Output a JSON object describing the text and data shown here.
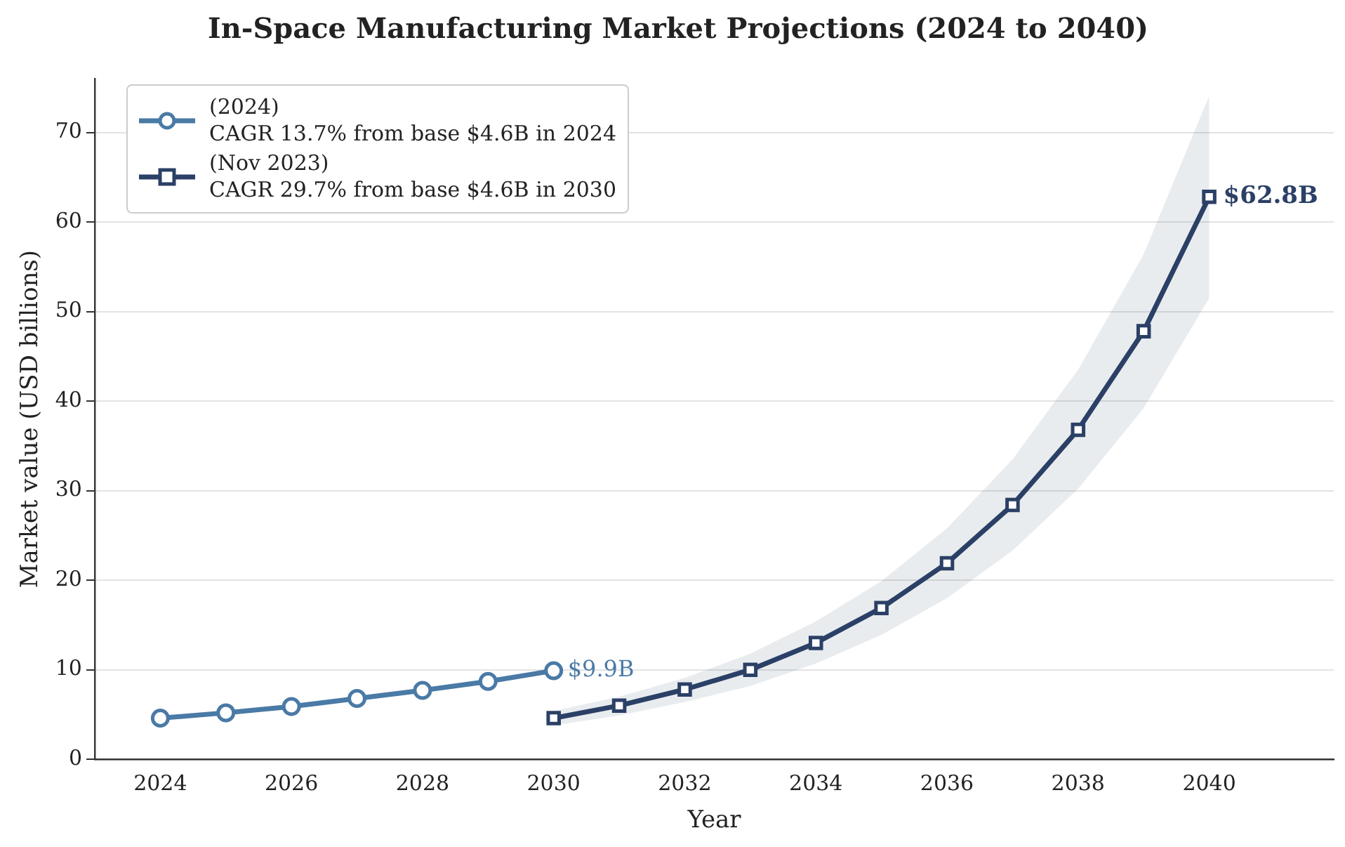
{
  "chart_data": {
    "type": "line",
    "title": "In-Space Manufacturing Market Projections (2024 to 2040)",
    "xlabel": "Year",
    "ylabel": "Market value (USD billions)",
    "xlim": [
      2023,
      2041.9
    ],
    "xticks": [
      2024,
      2026,
      2028,
      2030,
      2032,
      2034,
      2036,
      2038,
      2040
    ],
    "ylim": [
      0,
      76
    ],
    "yticks": [
      0,
      10,
      20,
      30,
      40,
      50,
      60,
      70
    ],
    "grid": "y",
    "legend": "top left",
    "line_style": "solid",
    "series": [
      {
        "name": "(2024)\nCAGR 13.7% from base $4.6B in 2024",
        "color": "#4a7aa6",
        "marker": "circle",
        "x": [
          2024,
          2025,
          2026,
          2027,
          2028,
          2029,
          2030
        ],
        "values": [
          4.6,
          5.2,
          5.9,
          6.8,
          7.7,
          8.7,
          9.9
        ]
      },
      {
        "name": "(Nov 2023)\nCAGR 29.7% from base $4.6B in 2030",
        "color": "#2b4066",
        "marker": "square",
        "x": [
          2030,
          2031,
          2032,
          2033,
          2034,
          2035,
          2036,
          2037,
          2038,
          2039,
          2040
        ],
        "values": [
          4.6,
          6.0,
          7.8,
          10.0,
          13.0,
          16.9,
          21.9,
          28.4,
          36.8,
          47.8,
          62.8
        ],
        "lower": [
          3.8,
          4.9,
          6.4,
          8.2,
          10.7,
          13.9,
          18.0,
          23.3,
          30.2,
          39.2,
          51.5
        ],
        "upper": [
          5.4,
          7.0,
          9.1,
          11.8,
          15.4,
          19.9,
          25.8,
          33.5,
          43.5,
          56.4,
          74.1
        ]
      }
    ],
    "annotations": [
      {
        "text": "$9.9B",
        "x": 2030,
        "y": 9.9
      },
      {
        "text": "$62.8B",
        "x": 2040,
        "y": 62.8
      }
    ]
  }
}
